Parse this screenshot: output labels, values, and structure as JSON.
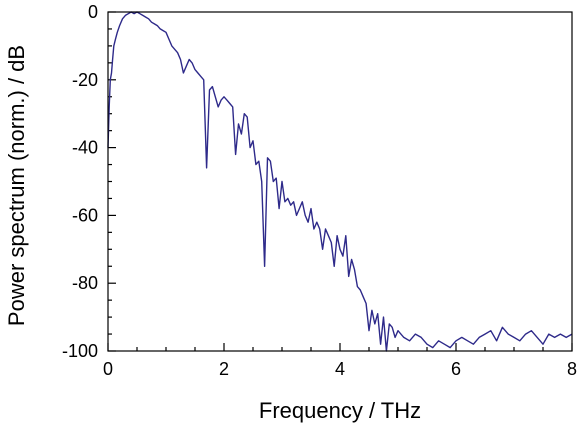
{
  "chart_data": {
    "type": "line",
    "xlabel": "Frequency / THz",
    "ylabel": "Power spectrum (norm.) / dB",
    "xlim": [
      0,
      8
    ],
    "ylim": [
      -100,
      0
    ],
    "x_ticks": [
      0,
      2,
      4,
      6,
      8
    ],
    "y_ticks": [
      0,
      -20,
      -40,
      -60,
      -80,
      -100
    ],
    "x_minor_step": 0.5,
    "y_minor_step": 5,
    "grid": false,
    "legend": "none",
    "series": [
      {
        "color": "#2e2a8a",
        "x": [
          0.0,
          0.02,
          0.04,
          0.06,
          0.08,
          0.1,
          0.13,
          0.16,
          0.2,
          0.25,
          0.3,
          0.35,
          0.4,
          0.45,
          0.5,
          0.55,
          0.6,
          0.65,
          0.7,
          0.75,
          0.8,
          0.85,
          0.9,
          0.95,
          1.0,
          1.05,
          1.1,
          1.15,
          1.2,
          1.25,
          1.3,
          1.35,
          1.4,
          1.45,
          1.5,
          1.55,
          1.6,
          1.65,
          1.7,
          1.75,
          1.8,
          1.85,
          1.9,
          1.95,
          2.0,
          2.05,
          2.1,
          2.15,
          2.2,
          2.25,
          2.3,
          2.35,
          2.4,
          2.45,
          2.5,
          2.55,
          2.6,
          2.65,
          2.7,
          2.75,
          2.8,
          2.85,
          2.9,
          2.95,
          3.0,
          3.05,
          3.1,
          3.15,
          3.2,
          3.25,
          3.3,
          3.35,
          3.4,
          3.45,
          3.5,
          3.55,
          3.6,
          3.65,
          3.7,
          3.75,
          3.8,
          3.85,
          3.9,
          3.95,
          4.0,
          4.05,
          4.1,
          4.15,
          4.2,
          4.25,
          4.3,
          4.35,
          4.4,
          4.45,
          4.5,
          4.55,
          4.6,
          4.65,
          4.7,
          4.75,
          4.8,
          4.85,
          4.9,
          4.95,
          5.0,
          5.1,
          5.2,
          5.3,
          5.4,
          5.5,
          5.6,
          5.7,
          5.8,
          5.9,
          6.0,
          6.1,
          6.2,
          6.3,
          6.4,
          6.5,
          6.6,
          6.7,
          6.8,
          6.9,
          7.0,
          7.1,
          7.2,
          7.3,
          7.4,
          7.5,
          7.6,
          7.7,
          7.8,
          7.9,
          8.0
        ],
        "y": [
          -40,
          -28,
          -20,
          -18,
          -14,
          -10,
          -8,
          -6,
          -4,
          -2,
          -1,
          -0.5,
          0,
          -0.5,
          0,
          -0.5,
          -1,
          -1.5,
          -2,
          -3,
          -3.5,
          -4,
          -5,
          -5.5,
          -6,
          -8,
          -10,
          -11,
          -12,
          -14,
          -18,
          -16,
          -14,
          -15,
          -17,
          -18,
          -19,
          -20,
          -46,
          -23,
          -22,
          -25,
          -28,
          -26,
          -25,
          -26,
          -27,
          -28,
          -42,
          -33,
          -36,
          -30,
          -31,
          -40,
          -38,
          -45,
          -44,
          -50,
          -75,
          -43,
          -44,
          -50,
          -49,
          -58,
          -50,
          -56,
          -55,
          -57,
          -56,
          -60,
          -58,
          -56,
          -60,
          -62,
          -58,
          -64,
          -62,
          -64,
          -70,
          -64,
          -66,
          -68,
          -75,
          -66,
          -70,
          -72,
          -66,
          -78,
          -73,
          -76,
          -81,
          -82,
          -84,
          -86,
          -94,
          -88,
          -92,
          -89,
          -98,
          -90,
          -100,
          -92,
          -93,
          -96,
          -94,
          -96,
          -97,
          -95,
          -96,
          -98,
          -99,
          -97,
          -98,
          -99,
          -97,
          -96,
          -97,
          -98,
          -96,
          -95,
          -94,
          -97,
          -93,
          -95,
          -96,
          -97,
          -95,
          -94,
          -96,
          -98,
          -95,
          -96,
          -95,
          -96,
          -95
        ]
      }
    ]
  }
}
